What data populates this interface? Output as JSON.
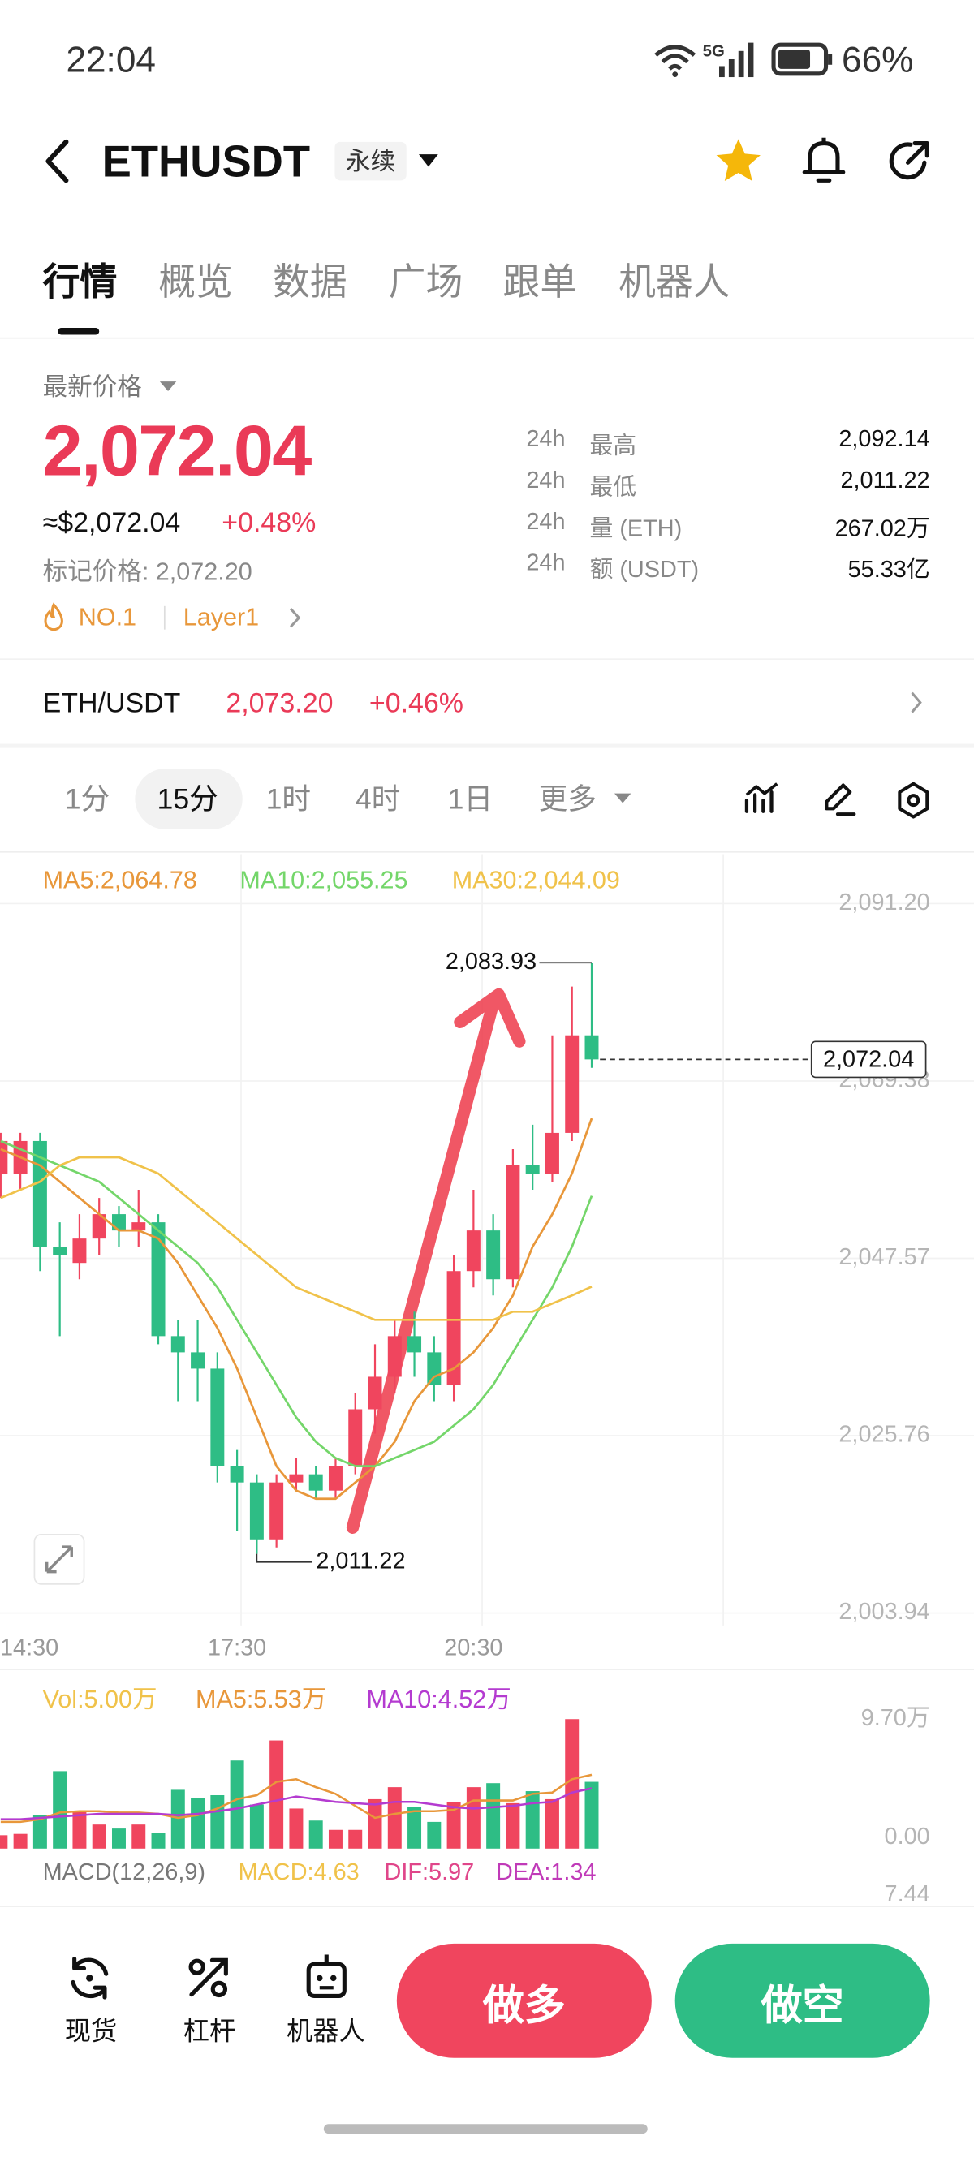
{
  "status_bar": {
    "time": "22:04",
    "network": "5G",
    "battery": "66%"
  },
  "header": {
    "symbol": "ETHUSDT",
    "contract_type": "永续"
  },
  "tabs": [
    "行情",
    "概览",
    "数据",
    "广场",
    "跟单",
    "机器人"
  ],
  "price_panel": {
    "label": "最新价格",
    "price": "2,072.04",
    "fiat_price": "≈$2,072.04",
    "change": "+0.48%",
    "mark_price": "标记价格: 2,072.20",
    "tags": [
      "NO.1",
      "Layer1"
    ],
    "stats": [
      {
        "period": "24h",
        "name": "最高",
        "value": "2,092.14"
      },
      {
        "period": "24h",
        "name": "最低",
        "value": "2,011.22"
      },
      {
        "period": "24h",
        "name": "量 (ETH)",
        "value": "267.02万"
      },
      {
        "period": "24h",
        "name": "额 (USDT)",
        "value": "55.33亿"
      }
    ]
  },
  "spot_row": {
    "pair": "ETH/USDT",
    "price": "2,073.20",
    "change": "+0.46%"
  },
  "intervals": [
    "1分",
    "15分",
    "1时",
    "4时",
    "1日",
    "更多"
  ],
  "chart_data": {
    "type": "candlestick",
    "categories": [
      "14:30",
      null,
      null,
      null,
      null,
      null,
      null,
      null,
      null,
      null,
      null,
      null,
      "17:30",
      null,
      null,
      null,
      null,
      null,
      null,
      null,
      null,
      null,
      null,
      null,
      "20:30",
      null,
      null,
      null,
      null,
      null,
      null
    ],
    "open": [
      2058,
      2058,
      2062,
      2049,
      2047,
      2050,
      2053,
      2051,
      2052,
      2038,
      2036,
      2034,
      2022,
      2020,
      2013,
      2020,
      2021,
      2019,
      2022,
      2029,
      2033,
      2038,
      2036,
      2032,
      2046,
      2051,
      2045,
      2059,
      2058,
      2063,
      2075
    ],
    "high": [
      2063,
      2063,
      2063,
      2052,
      2053,
      2055,
      2054,
      2056,
      2053,
      2040,
      2040,
      2036,
      2024,
      2021,
      2021,
      2023,
      2022,
      2023,
      2031,
      2037,
      2040,
      2041,
      2038,
      2048,
      2056,
      2053,
      2061,
      2064,
      2075,
      2081,
      2083.93
    ],
    "low": [
      2055,
      2056,
      2046,
      2038,
      2045,
      2048,
      2049,
      2049,
      2037,
      2030,
      2030,
      2020,
      2014,
      2011.22,
      2012,
      2019,
      2018,
      2018,
      2021,
      2026,
      2031,
      2033,
      2030,
      2030,
      2044,
      2043,
      2044,
      2056,
      2057,
      2062,
      2071
    ],
    "close": [
      2062,
      2062,
      2049,
      2048,
      2050,
      2053,
      2051,
      2052,
      2038,
      2036,
      2034,
      2022,
      2020,
      2013,
      2020,
      2021,
      2019,
      2022,
      2029,
      2033,
      2038,
      2036,
      2032,
      2046,
      2051,
      2045,
      2059,
      2058,
      2063,
      2075,
      2072.04
    ],
    "up_color": "#f0455e",
    "down_color": "#2ebd85",
    "series": [
      {
        "name": "MA5:2,064.78",
        "color": "#e8973a",
        "values": [
          2061,
          2060,
          2059,
          2057,
          2055,
          2053,
          2051,
          2051,
          2050,
          2047,
          2043,
          2039,
          2034,
          2028,
          2022,
          2019,
          2018,
          2018,
          2020,
          2022,
          2025,
          2030,
          2033,
          2034,
          2036,
          2039,
          2043,
          2049,
          2053,
          2058,
          2064.78
        ]
      },
      {
        "name": "MA10:2,055.25",
        "color": "#74d66a",
        "values": [
          2062,
          2061,
          2060,
          2059,
          2058,
          2057,
          2055,
          2053,
          2051,
          2049,
          2047,
          2044,
          2040,
          2036,
          2032,
          2028,
          2025,
          2023,
          2022,
          2022,
          2023,
          2024,
          2025,
          2027,
          2029,
          2032,
          2036,
          2040,
          2044,
          2049,
          2055.25
        ]
      },
      {
        "name": "MA30:2,044.09",
        "color": "#f0c24a",
        "values": [
          2055,
          2056,
          2057,
          2059,
          2060,
          2060,
          2060,
          2059,
          2058,
          2056,
          2054,
          2052,
          2050,
          2048,
          2046,
          2044,
          2043,
          2042,
          2041,
          2040,
          2040,
          2040,
          2040,
          2040,
          2040,
          2040,
          2041,
          2041,
          2042,
          2043,
          2044.09
        ]
      }
    ],
    "ylim": [
      2003.94,
      2091.2
    ],
    "yticks": [
      {
        "value": 2003.94,
        "label": "2,003.94"
      },
      {
        "value": 2025.76,
        "label": "2,025.76"
      },
      {
        "value": 2047.57,
        "label": "2,047.57"
      },
      {
        "value": 2069.38,
        "label": "2,069.38"
      },
      {
        "value": 2091.2,
        "label": "2,091.20"
      }
    ],
    "grid": true,
    "current_price": {
      "value": 2072.04,
      "label": "2,072.04"
    },
    "high_annotation": {
      "value": 2083.93,
      "label": "2,083.93"
    },
    "low_annotation": {
      "value": 2011.22,
      "label": "2,011.22"
    },
    "volume": {
      "label": "Vol:5.00万",
      "label_color": "#f0c24a",
      "values": [
        1.0,
        1.1,
        2.5,
        5.8,
        2.8,
        1.8,
        1.5,
        1.8,
        1.2,
        4.4,
        3.8,
        4.0,
        6.6,
        3.3,
        8.1,
        3.0,
        2.1,
        1.4,
        1.4,
        3.7,
        4.6,
        3.1,
        2.0,
        3.5,
        4.6,
        4.9,
        3.4,
        4.3,
        3.7,
        9.7,
        5.0
      ],
      "series": [
        {
          "name": "MA5:5.53万",
          "color": "#e8973a",
          "values": [
            2.0,
            2.0,
            2.2,
            2.7,
            2.8,
            2.8,
            2.7,
            2.7,
            2.6,
            2.3,
            2.5,
            3.0,
            3.7,
            4.0,
            5.0,
            5.2,
            4.6,
            4.1,
            3.2,
            2.3,
            2.6,
            2.8,
            2.8,
            2.9,
            3.6,
            3.6,
            3.6,
            4.1,
            4.2,
            5.2,
            5.53
          ]
        },
        {
          "name": "MA10:4.52万",
          "color": "#b43bd0",
          "values": [
            2.2,
            2.2,
            2.3,
            2.4,
            2.5,
            2.6,
            2.6,
            2.6,
            2.6,
            2.5,
            2.6,
            2.8,
            3.0,
            3.3,
            3.6,
            3.9,
            3.7,
            3.5,
            3.4,
            3.3,
            3.5,
            3.5,
            3.3,
            3.1,
            3.0,
            3.1,
            3.2,
            3.4,
            3.5,
            4.2,
            4.52
          ]
        }
      ],
      "ylim": [
        0,
        9.7
      ],
      "yticks": [
        {
          "value": 0,
          "label": "0.00"
        },
        {
          "value": 9.7,
          "label": "9.70万"
        }
      ]
    },
    "macd": {
      "legend": [
        {
          "text": "MACD(12,26,9)",
          "color": "#777777"
        },
        {
          "text": "MACD:4.63",
          "color": "#f0c24a"
        },
        {
          "text": "DIF:5.97",
          "color": "#e0468a"
        },
        {
          "text": "DEA:1.34",
          "color": "#c03ab8"
        }
      ],
      "yticks": [
        7.44
      ]
    }
  },
  "bottom_bar": {
    "items": [
      "现货",
      "杠杆",
      "机器人"
    ],
    "long": "做多",
    "short": "做空"
  }
}
